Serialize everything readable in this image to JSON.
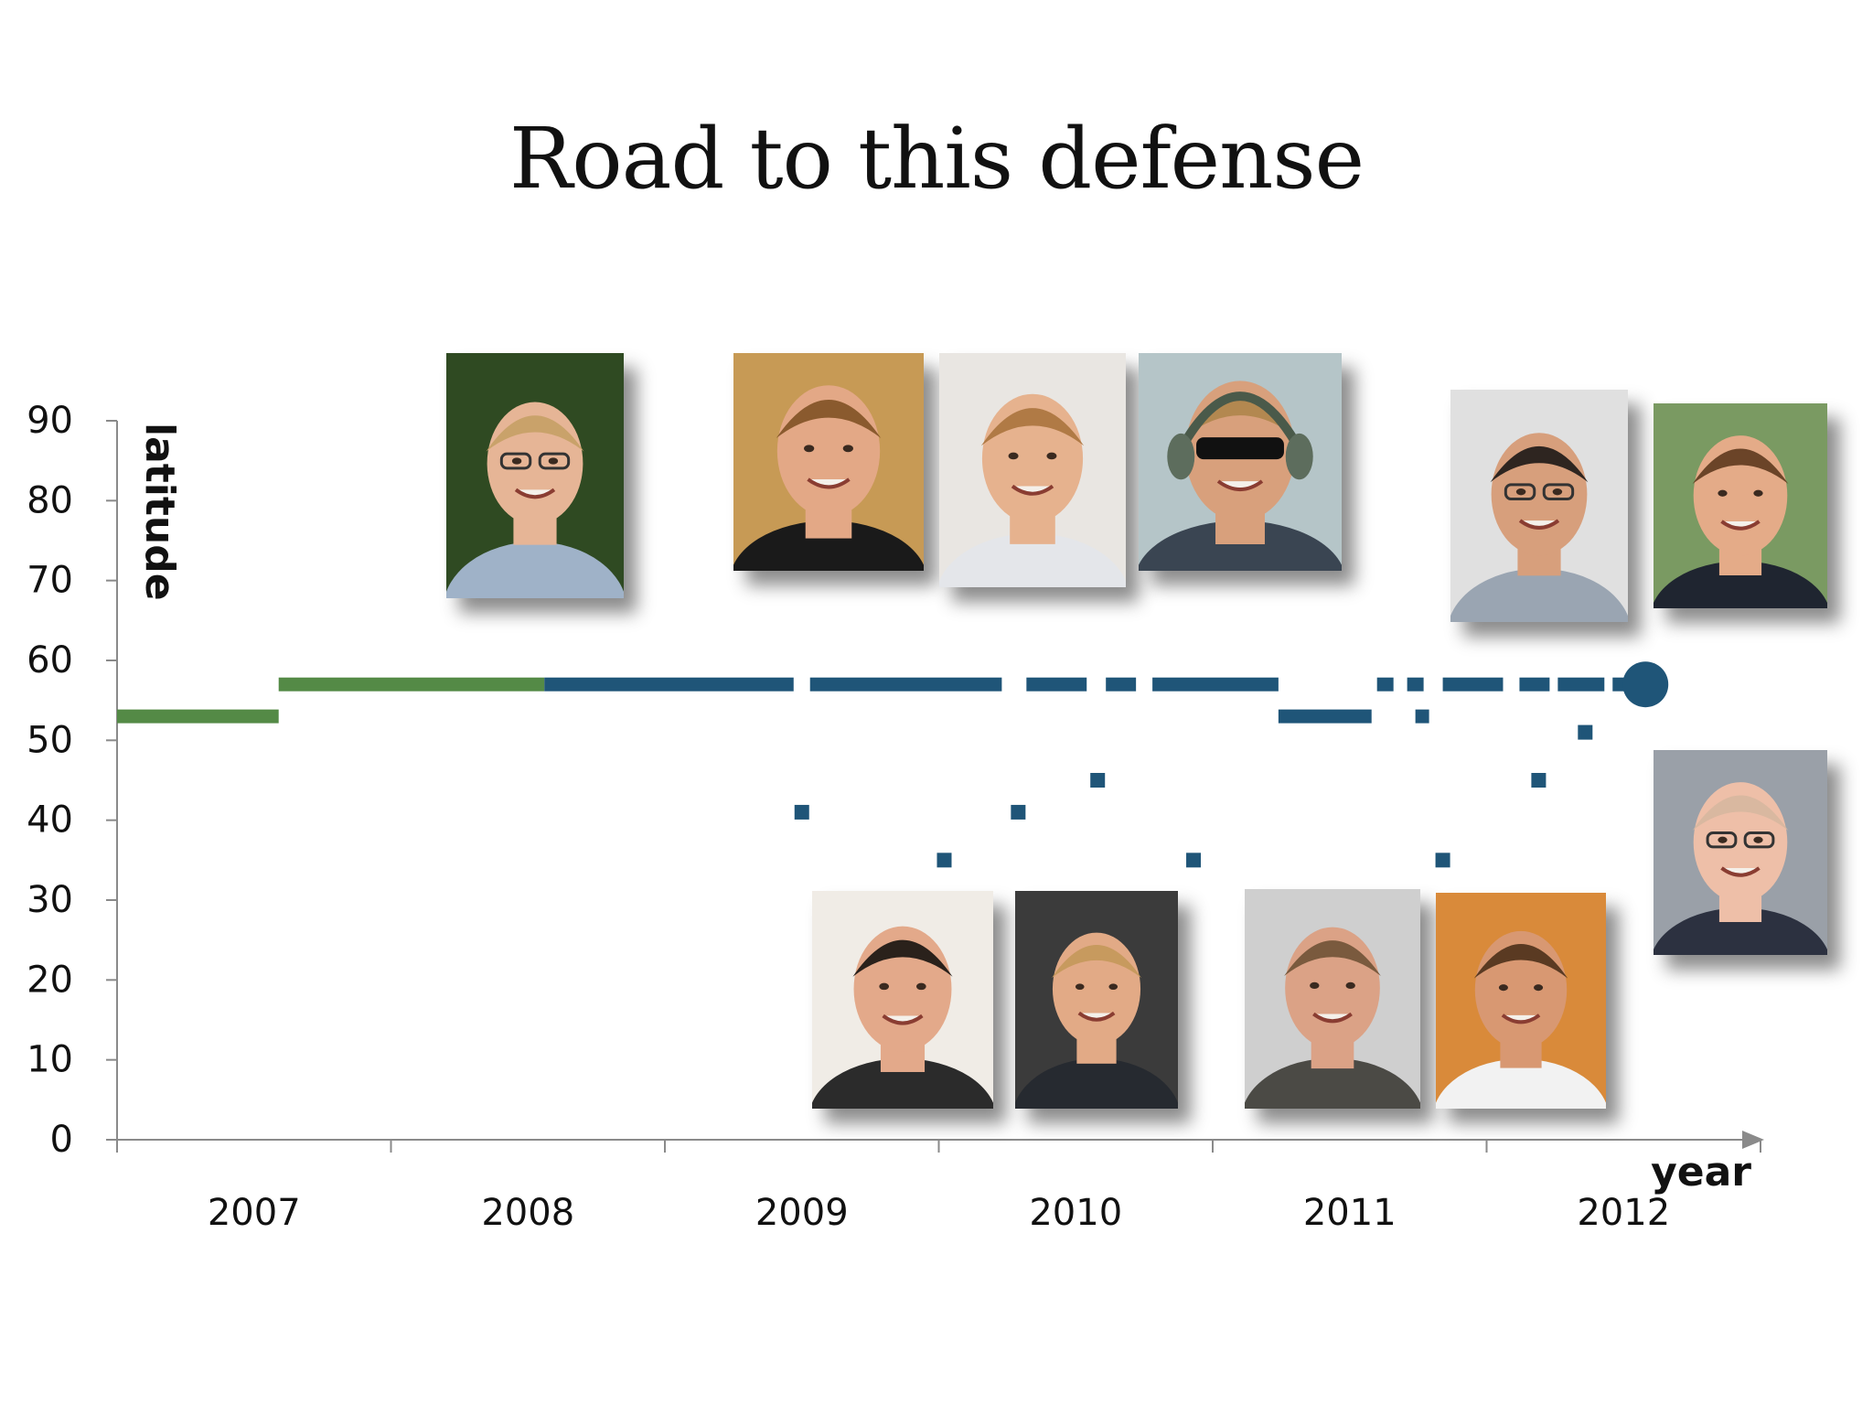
{
  "slide": {
    "title": "Road to this defense"
  },
  "chart_data": {
    "type": "line",
    "title": "Road to this defense",
    "xlabel": "year",
    "ylabel": "latitude",
    "ylim": [
      0,
      90
    ],
    "yticks": [
      0,
      10,
      20,
      30,
      40,
      50,
      60,
      70,
      80,
      90
    ],
    "xlim": [
      2006.5,
      2012.5
    ],
    "xtick_labels": [
      {
        "label": "2007",
        "x": 2007.0
      },
      {
        "label": "2008",
        "x": 2008.0
      },
      {
        "label": "2009",
        "x": 2009.0
      },
      {
        "label": "2010",
        "x": 2010.0
      },
      {
        "label": "2011",
        "x": 2011.0
      },
      {
        "label": "2012",
        "x": 2012.0
      }
    ],
    "xticks": [
      2006.5,
      2007.5,
      2008.5,
      2009.5,
      2010.5,
      2011.5,
      2012.5
    ],
    "grid": false,
    "colors": {
      "green": "#548a46",
      "blue": "#1f5578",
      "axis": "#8a8a8a"
    },
    "series": [
      {
        "color": "#548a46",
        "segments": [
          {
            "x0": 2006.5,
            "x1": 2007.09,
            "y": 53
          },
          {
            "x0": 2007.09,
            "x1": 2008.06,
            "y": 57
          }
        ]
      },
      {
        "color": "#1f5578",
        "segments": [
          {
            "x0": 2008.06,
            "x1": 2008.97,
            "y": 57
          },
          {
            "x0": 2009.03,
            "x1": 2009.73,
            "y": 57
          },
          {
            "x0": 2009.82,
            "x1": 2010.04,
            "y": 57
          },
          {
            "x0": 2010.11,
            "x1": 2010.22,
            "y": 57
          },
          {
            "x0": 2010.28,
            "x1": 2010.74,
            "y": 57
          },
          {
            "x0": 2010.74,
            "x1": 2011.08,
            "y": 53
          },
          {
            "x0": 2011.1,
            "x1": 2011.16,
            "y": 57
          },
          {
            "x0": 2011.21,
            "x1": 2011.27,
            "y": 57
          },
          {
            "x0": 2011.24,
            "x1": 2011.29,
            "y": 53
          },
          {
            "x0": 2011.34,
            "x1": 2011.56,
            "y": 57
          },
          {
            "x0": 2011.62,
            "x1": 2011.73,
            "y": 57
          },
          {
            "x0": 2011.76,
            "x1": 2011.93,
            "y": 57
          },
          {
            "x0": 2011.96,
            "x1": 2012.05,
            "y": 57
          }
        ],
        "points": [
          {
            "x": 2009.0,
            "y": 41
          },
          {
            "x": 2009.52,
            "y": 35
          },
          {
            "x": 2009.79,
            "y": 41
          },
          {
            "x": 2010.08,
            "y": 45
          },
          {
            "x": 2010.43,
            "y": 35
          },
          {
            "x": 2011.34,
            "y": 35
          },
          {
            "x": 2011.69,
            "y": 45
          },
          {
            "x": 2011.86,
            "y": 51
          }
        ],
        "endpoint": {
          "x": 2012.08,
          "y": 57
        }
      }
    ]
  },
  "photos": [
    {
      "name": "photo-person-1",
      "bg": "#2f4a22",
      "skin": "#e6b596",
      "hair": "#c9a26a",
      "shirt": "#9fb2c8",
      "glasses": true,
      "headset": false,
      "sunglasses": false
    },
    {
      "name": "photo-person-2",
      "bg": "#c79a55",
      "skin": "#e3a886",
      "hair": "#8a5a2e",
      "shirt": "#1a1a1a",
      "glasses": false,
      "headset": false,
      "sunglasses": false
    },
    {
      "name": "photo-person-3",
      "bg": "#e9e6e2",
      "skin": "#e6b28e",
      "hair": "#b07a45",
      "shirt": "#e4e6ea",
      "glasses": false,
      "headset": false,
      "sunglasses": false
    },
    {
      "name": "photo-person-4",
      "bg": "#b5c5c8",
      "skin": "#d8a07c",
      "hair": "#b38850",
      "shirt": "#3a4552",
      "glasses": false,
      "headset": true,
      "sunglasses": true
    },
    {
      "name": "photo-person-5",
      "bg": "#e0e0e0",
      "skin": "#d79f7c",
      "hair": "#2e2520",
      "shirt": "#9aa5b2",
      "glasses": true,
      "headset": false,
      "sunglasses": false
    },
    {
      "name": "photo-person-6",
      "bg": "#7a9a62",
      "skin": "#e4ab88",
      "hair": "#6b4428",
      "shirt": "#1f2530",
      "glasses": false,
      "headset": false,
      "sunglasses": false
    },
    {
      "name": "photo-person-7",
      "bg": "#9aa0a8",
      "skin": "#eebfa8",
      "hair": "#d9b8a0",
      "shirt": "#2c3140",
      "glasses": true,
      "headset": false,
      "sunglasses": false
    },
    {
      "name": "photo-person-8",
      "bg": "#f0ece6",
      "skin": "#e3a98a",
      "hair": "#2a211b",
      "shirt": "#2b2b2b",
      "glasses": false,
      "headset": false,
      "sunglasses": false
    },
    {
      "name": "photo-person-9",
      "bg": "#3b3b3b",
      "skin": "#e2aa86",
      "hair": "#c79a5e",
      "shirt": "#262a30",
      "glasses": false,
      "headset": false,
      "sunglasses": false
    },
    {
      "name": "photo-person-10",
      "bg": "#cfcfcf",
      "skin": "#dba286",
      "hair": "#7a5a3e",
      "shirt": "#4b4a45",
      "glasses": false,
      "headset": false,
      "sunglasses": false
    },
    {
      "name": "photo-person-11",
      "bg": "#d98a3a",
      "skin": "#d89872",
      "hair": "#5a3a22",
      "shirt": "#f2f2f2",
      "glasses": false,
      "headset": false,
      "sunglasses": false
    }
  ]
}
